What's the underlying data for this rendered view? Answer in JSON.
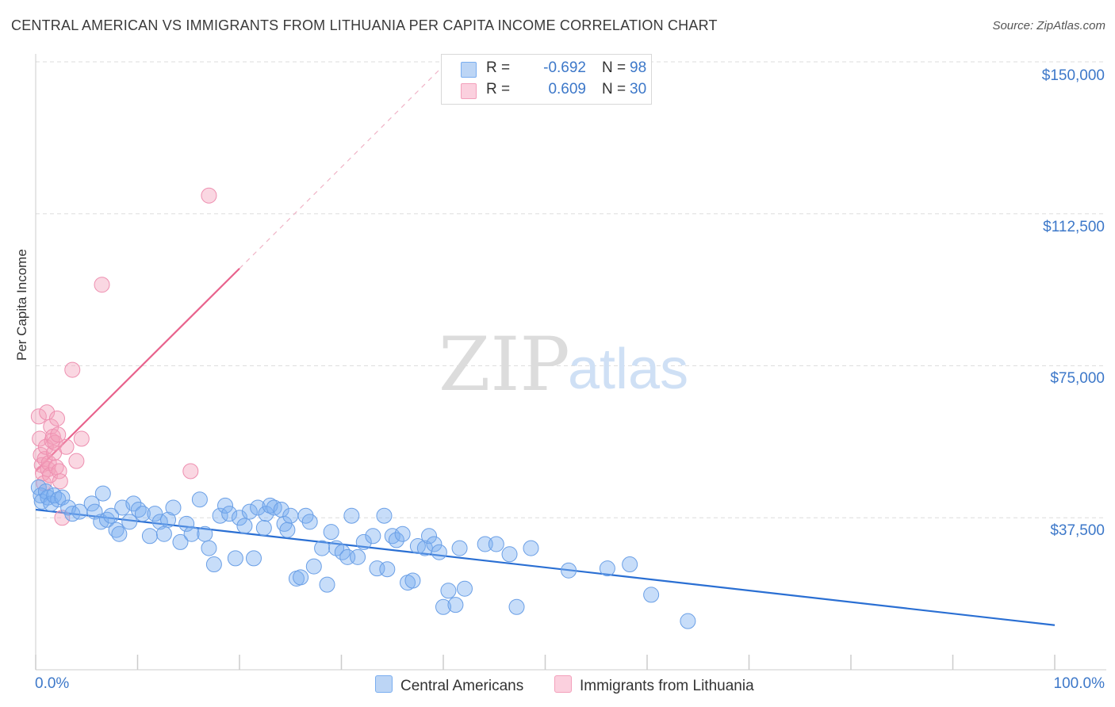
{
  "title": "CENTRAL AMERICAN VS IMMIGRANTS FROM LITHUANIA PER CAPITA INCOME CORRELATION CHART",
  "source": "Source: ZipAtlas.com",
  "watermark": {
    "zip": "ZIP",
    "atlas": "atlas"
  },
  "legend": {
    "rows": [
      {
        "r_label": "R =",
        "r_value": "-0.692",
        "n_label": "N =",
        "n_value": "98"
      },
      {
        "r_label": "R =",
        "r_value": "0.609",
        "n_label": "N =",
        "n_value": "30"
      }
    ]
  },
  "bottom_legend": [
    "Central Americans",
    "Immigrants from Lithuania"
  ],
  "chart_data": {
    "type": "scatter",
    "xlabel": "",
    "ylabel": "Per Capita Income",
    "xlim": [
      0,
      100
    ],
    "ylim": [
      0,
      150000
    ],
    "x_tick_labels": [
      "0.0%",
      "100.0%"
    ],
    "y_ticks": [
      37500,
      75000,
      112500,
      150000
    ],
    "y_tick_labels": [
      "$37,500",
      "$75,000",
      "$112,500",
      "$150,000"
    ],
    "grid": "horizontal dashed",
    "legend_position": "top-center",
    "colors": {
      "blue": "#7aaef0",
      "blue_line": "#2a6fd3",
      "pink": "#f3a0bb",
      "pink_line": "#e8628c"
    },
    "series": [
      {
        "name": "Central Americans",
        "color": "#7aaef0",
        "r": -0.692,
        "n": 98,
        "trend": {
          "x": [
            0,
            100
          ],
          "y": [
            39500,
            11000
          ]
        },
        "points": [
          [
            0.3,
            45000
          ],
          [
            0.5,
            43000
          ],
          [
            0.6,
            41500
          ],
          [
            1.0,
            44000
          ],
          [
            1.2,
            42500
          ],
          [
            1.5,
            41000
          ],
          [
            1.8,
            43000
          ],
          [
            2.2,
            42000
          ],
          [
            2.6,
            42500
          ],
          [
            3.2,
            40000
          ],
          [
            3.6,
            38500
          ],
          [
            4.3,
            39000
          ],
          [
            5.5,
            41000
          ],
          [
            5.8,
            39000
          ],
          [
            6.4,
            36500
          ],
          [
            6.6,
            43500
          ],
          [
            7.0,
            37000
          ],
          [
            7.4,
            38000
          ],
          [
            7.9,
            34500
          ],
          [
            8.2,
            33500
          ],
          [
            8.5,
            40000
          ],
          [
            9.2,
            36500
          ],
          [
            9.6,
            41000
          ],
          [
            10.1,
            39500
          ],
          [
            10.5,
            38500
          ],
          [
            11.2,
            33000
          ],
          [
            11.7,
            38500
          ],
          [
            12.2,
            36500
          ],
          [
            12.6,
            33500
          ],
          [
            13.0,
            37000
          ],
          [
            13.5,
            40000
          ],
          [
            14.2,
            31500
          ],
          [
            14.8,
            36000
          ],
          [
            15.3,
            33500
          ],
          [
            16.1,
            42000
          ],
          [
            16.6,
            33500
          ],
          [
            17.0,
            30000
          ],
          [
            17.5,
            26000
          ],
          [
            18.1,
            38000
          ],
          [
            18.6,
            40500
          ],
          [
            19.0,
            38500
          ],
          [
            19.6,
            27500
          ],
          [
            20.0,
            37500
          ],
          [
            20.5,
            35500
          ],
          [
            21.0,
            39000
          ],
          [
            21.4,
            27500
          ],
          [
            21.8,
            40000
          ],
          [
            22.4,
            35000
          ],
          [
            22.6,
            38500
          ],
          [
            23.0,
            40500
          ],
          [
            23.4,
            40000
          ],
          [
            24.1,
            39500
          ],
          [
            24.4,
            36000
          ],
          [
            24.7,
            34500
          ],
          [
            25.0,
            38000
          ],
          [
            25.6,
            22500
          ],
          [
            26.0,
            22800
          ],
          [
            26.5,
            38000
          ],
          [
            26.9,
            36500
          ],
          [
            27.3,
            25500
          ],
          [
            28.1,
            30000
          ],
          [
            28.6,
            21000
          ],
          [
            29.0,
            34000
          ],
          [
            29.5,
            30000
          ],
          [
            30.1,
            29000
          ],
          [
            30.6,
            27800
          ],
          [
            31.0,
            38000
          ],
          [
            31.6,
            27800
          ],
          [
            32.2,
            31500
          ],
          [
            33.1,
            33000
          ],
          [
            33.5,
            25000
          ],
          [
            34.2,
            38000
          ],
          [
            34.5,
            24800
          ],
          [
            35.0,
            33000
          ],
          [
            35.4,
            32000
          ],
          [
            36.0,
            33500
          ],
          [
            36.5,
            21500
          ],
          [
            37.0,
            22000
          ],
          [
            37.5,
            30500
          ],
          [
            38.2,
            30000
          ],
          [
            38.6,
            33000
          ],
          [
            39.1,
            31000
          ],
          [
            39.6,
            29000
          ],
          [
            40.0,
            15500
          ],
          [
            40.5,
            19500
          ],
          [
            41.2,
            16000
          ],
          [
            41.6,
            30000
          ],
          [
            42.1,
            20000
          ],
          [
            44.1,
            31000
          ],
          [
            45.2,
            31000
          ],
          [
            46.5,
            28500
          ],
          [
            47.2,
            15500
          ],
          [
            48.6,
            30000
          ],
          [
            52.3,
            24500
          ],
          [
            56.1,
            25000
          ],
          [
            58.3,
            26000
          ],
          [
            60.4,
            18500
          ],
          [
            64.0,
            12000
          ]
        ]
      },
      {
        "name": "Immigrants from Lithuania",
        "color": "#f3a0bb",
        "r": 0.609,
        "n": 30,
        "trend": {
          "x": [
            0,
            20
          ],
          "y": [
            49000,
            99000
          ]
        },
        "points": [
          [
            0.3,
            62500
          ],
          [
            0.4,
            57000
          ],
          [
            0.5,
            53000
          ],
          [
            0.6,
            50500
          ],
          [
            0.7,
            48500
          ],
          [
            0.8,
            46000
          ],
          [
            0.9,
            52000
          ],
          [
            1.0,
            55000
          ],
          [
            1.1,
            63500
          ],
          [
            1.2,
            49500
          ],
          [
            1.3,
            51000
          ],
          [
            1.4,
            48000
          ],
          [
            1.5,
            60000
          ],
          [
            1.6,
            56500
          ],
          [
            1.7,
            57500
          ],
          [
            1.8,
            53500
          ],
          [
            1.9,
            56000
          ],
          [
            2.0,
            50000
          ],
          [
            2.1,
            62000
          ],
          [
            2.2,
            58000
          ],
          [
            2.3,
            49000
          ],
          [
            2.4,
            46500
          ],
          [
            2.6,
            37500
          ],
          [
            3.0,
            55000
          ],
          [
            3.6,
            74000
          ],
          [
            4.0,
            51500
          ],
          [
            4.5,
            57000
          ],
          [
            6.5,
            95000
          ],
          [
            15.2,
            49000
          ],
          [
            17.0,
            117000
          ]
        ]
      }
    ]
  }
}
